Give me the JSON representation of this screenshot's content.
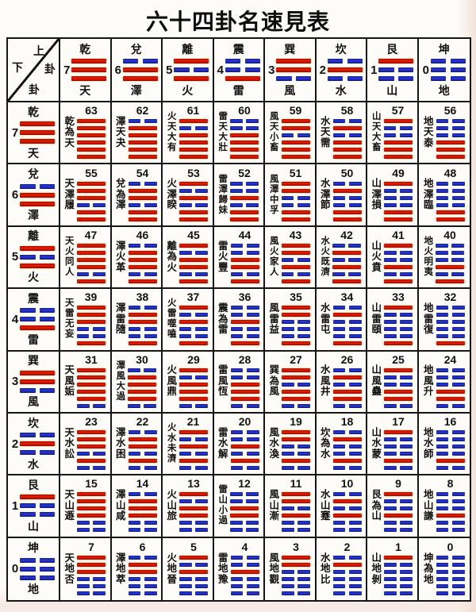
{
  "title": "六十四卦名速見表",
  "corner": {
    "upper_char": "上",
    "upper_gua": "卦",
    "lower_char": "下",
    "lower_gua": "卦"
  },
  "colors": {
    "yang_red": "#d01200",
    "yin_blue": "#1f2dc1",
    "grid": "#161616",
    "text": "#111111",
    "page_bg": "#fdfcf8",
    "edge_tint": "#f2dfd6"
  },
  "trigrams": [
    {
      "name": "乾",
      "element": "天",
      "value": 7,
      "lines": [
        1,
        1,
        1
      ]
    },
    {
      "name": "兌",
      "element": "澤",
      "value": 6,
      "lines": [
        0,
        1,
        1
      ]
    },
    {
      "name": "離",
      "element": "火",
      "value": 5,
      "lines": [
        1,
        0,
        1
      ]
    },
    {
      "name": "震",
      "element": "雷",
      "value": 4,
      "lines": [
        0,
        0,
        1
      ]
    },
    {
      "name": "巽",
      "element": "風",
      "value": 3,
      "lines": [
        1,
        1,
        0
      ]
    },
    {
      "name": "坎",
      "element": "水",
      "value": 2,
      "lines": [
        0,
        1,
        0
      ]
    },
    {
      "name": "艮",
      "element": "山",
      "value": 1,
      "lines": [
        1,
        0,
        0
      ]
    },
    {
      "name": "坤",
      "element": "地",
      "value": 0,
      "lines": [
        0,
        0,
        0
      ]
    }
  ],
  "hexagram_rows": [
    {
      "lower": "乾",
      "cells": [
        {
          "number": 63,
          "name": "乾為天"
        },
        {
          "number": 62,
          "name": "澤天夬"
        },
        {
          "number": 61,
          "name": "火天大有"
        },
        {
          "number": 60,
          "name": "雷天大壯"
        },
        {
          "number": 59,
          "name": "風天小畜"
        },
        {
          "number": 58,
          "name": "水天需"
        },
        {
          "number": 57,
          "name": "山天大畜"
        },
        {
          "number": 56,
          "name": "地天泰"
        }
      ]
    },
    {
      "lower": "兌",
      "cells": [
        {
          "number": 55,
          "name": "天澤履"
        },
        {
          "number": 54,
          "name": "兌為澤"
        },
        {
          "number": 53,
          "name": "火澤睽"
        },
        {
          "number": 52,
          "name": "雷澤歸妹"
        },
        {
          "number": 51,
          "name": "風澤中孚"
        },
        {
          "number": 50,
          "name": "水澤節"
        },
        {
          "number": 49,
          "name": "山澤損"
        },
        {
          "number": 48,
          "name": "地澤臨"
        }
      ]
    },
    {
      "lower": "離",
      "cells": [
        {
          "number": 47,
          "name": "天火同人"
        },
        {
          "number": 46,
          "name": "澤火革"
        },
        {
          "number": 45,
          "name": "離為火"
        },
        {
          "number": 44,
          "name": "雷火豐"
        },
        {
          "number": 43,
          "name": "風火家人"
        },
        {
          "number": 42,
          "name": "水火既濟"
        },
        {
          "number": 41,
          "name": "山火賁"
        },
        {
          "number": 40,
          "name": "地火明夷"
        }
      ]
    },
    {
      "lower": "震",
      "cells": [
        {
          "number": 39,
          "name": "天雷无妄"
        },
        {
          "number": 38,
          "name": "澤雷隨"
        },
        {
          "number": 37,
          "name": "火雷噬嗑"
        },
        {
          "number": 36,
          "name": "震為雷"
        },
        {
          "number": 35,
          "name": "風雷益"
        },
        {
          "number": 34,
          "name": "水雷屯"
        },
        {
          "number": 33,
          "name": "山雷頤"
        },
        {
          "number": 32,
          "name": "地雷復"
        }
      ]
    },
    {
      "lower": "巽",
      "cells": [
        {
          "number": 31,
          "name": "天風姤"
        },
        {
          "number": 30,
          "name": "澤風大過"
        },
        {
          "number": 29,
          "name": "火風鼎"
        },
        {
          "number": 28,
          "name": "雷風恆"
        },
        {
          "number": 27,
          "name": "巽為風"
        },
        {
          "number": 26,
          "name": "水風井"
        },
        {
          "number": 25,
          "name": "山風蠱"
        },
        {
          "number": 24,
          "name": "地風升"
        }
      ]
    },
    {
      "lower": "坎",
      "cells": [
        {
          "number": 23,
          "name": "天水訟"
        },
        {
          "number": 22,
          "name": "澤水困"
        },
        {
          "number": 21,
          "name": "火水未濟"
        },
        {
          "number": 20,
          "name": "雷水解"
        },
        {
          "number": 19,
          "name": "風水渙"
        },
        {
          "number": 18,
          "name": "坎為水"
        },
        {
          "number": 17,
          "name": "山水蒙"
        },
        {
          "number": 16,
          "name": "地水師"
        }
      ]
    },
    {
      "lower": "艮",
      "cells": [
        {
          "number": 15,
          "name": "天山遯"
        },
        {
          "number": 14,
          "name": "澤山咸"
        },
        {
          "number": 13,
          "name": "火山旅"
        },
        {
          "number": 12,
          "name": "雷山小過"
        },
        {
          "number": 11,
          "name": "風山漸"
        },
        {
          "number": 10,
          "name": "水山蹇"
        },
        {
          "number": 9,
          "name": "艮為山"
        },
        {
          "number": 8,
          "name": "地山謙"
        }
      ]
    },
    {
      "lower": "坤",
      "cells": [
        {
          "number": 7,
          "name": "天地否"
        },
        {
          "number": 6,
          "name": "澤地萃"
        },
        {
          "number": 5,
          "name": "火地晉"
        },
        {
          "number": 4,
          "name": "雷地豫"
        },
        {
          "number": 3,
          "name": "風地觀"
        },
        {
          "number": 2,
          "name": "水地比"
        },
        {
          "number": 1,
          "name": "山地剝"
        },
        {
          "number": 0,
          "name": "坤為地"
        }
      ]
    }
  ]
}
